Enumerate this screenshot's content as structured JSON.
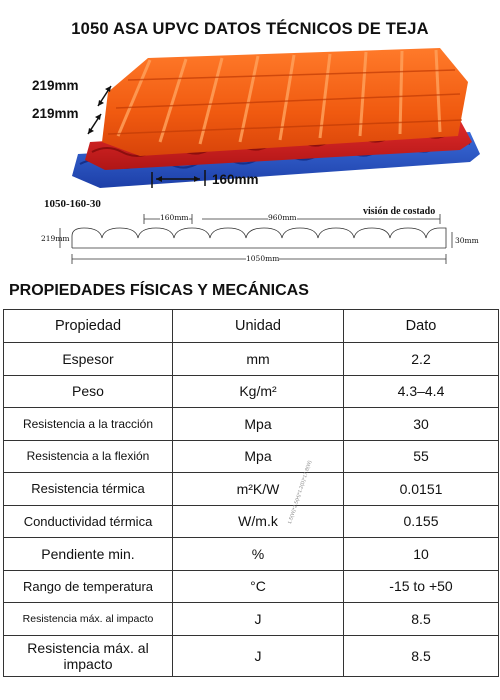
{
  "title": "1050 ASA UPVC DATOS TÉCNICOS DE TEJA",
  "hero": {
    "dim_a": "219mm",
    "dim_b": "219mm",
    "dim_c": "160mm"
  },
  "profile": {
    "code": "1050-160-30",
    "side_view": "visión de costado",
    "pitch": "160mm",
    "effective": "960mm",
    "height": "219mm",
    "depth": "30mm",
    "total": "1050mm"
  },
  "section_title": "PROPIEDADES FÍSICAS Y MECÁNICAS",
  "table": {
    "headers": [
      "Propiedad",
      "Unidad",
      "Dato"
    ],
    "rows": [
      {
        "prop": "Espesor",
        "unit": "mm",
        "value": "2.2"
      },
      {
        "prop": "Peso",
        "unit": "Kg/m²",
        "value": "4.3–4.4"
      },
      {
        "prop": "Resistencia a la tracción",
        "unit": "Mpa",
        "value": "30"
      },
      {
        "prop": "Resistencia a la flexión",
        "unit": "Mpa",
        "value": "55"
      },
      {
        "prop": "Resistencia térmica",
        "unit": "m²K/W",
        "value": "0.0151"
      },
      {
        "prop": "Conductividad térmica",
        "unit": "W/m.k",
        "value": "0.155"
      },
      {
        "prop": "Pendiente min.",
        "unit": "%",
        "value": "10"
      },
      {
        "prop": "Rango de temperatura",
        "unit": "°C",
        "value": "-15 to +50"
      },
      {
        "prop": "Resistencia máx. al impacto",
        "unit": "J",
        "value": "8.5"
      },
      {
        "prop": "Resistencia máx. al impacto",
        "unit": "J",
        "value": "8.5"
      }
    ]
  },
  "watermark": "1.5(W)*2.5(H)*1.2(D)*17.8(W)"
}
